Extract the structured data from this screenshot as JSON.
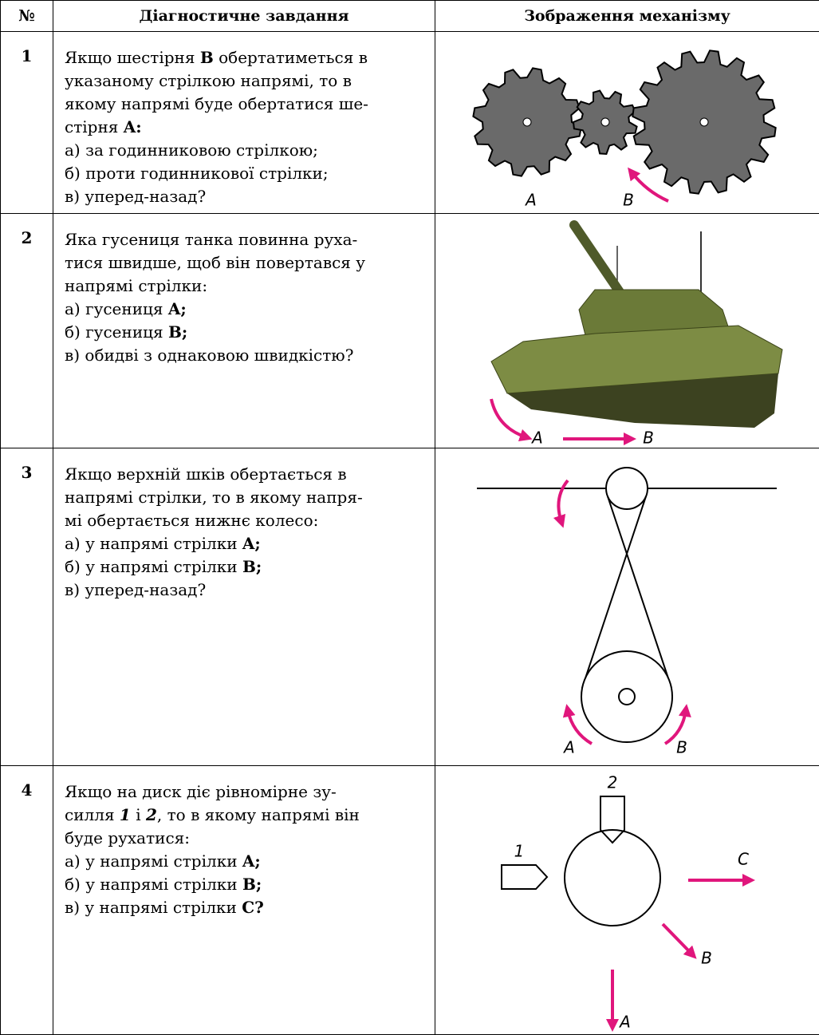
{
  "table": {
    "header": [
      "№",
      "Діагностичне завдання",
      "Зображення механізму"
    ],
    "rows": [
      {
        "number": "1",
        "lines": [
          [
            "Якщо шестірня ",
            {
              "b": "B"
            },
            " обертатиметься в"
          ],
          [
            "указаному стрілкою напрямі, то в"
          ],
          [
            "якому напрямі буде обертатися ше-"
          ],
          [
            "стірня ",
            {
              "b": "A:"
            }
          ],
          [
            "а) за годинниковою стрілкою;"
          ],
          [
            "б) проти годинникової стрілки;"
          ],
          [
            "в) уперед-назад?"
          ]
        ],
        "figure_labels": [
          "A",
          "B"
        ]
      },
      {
        "number": "2",
        "lines": [
          [
            "Яка гусениця танка повинна руха-"
          ],
          [
            "тися швидше, щоб він повертався у"
          ],
          [
            "напрямі стрілки:"
          ],
          [
            "а) гусениця ",
            {
              "b": "A;"
            }
          ],
          [
            "б) гусениця ",
            {
              "b": "B;"
            }
          ],
          [
            "в) обидві з однаковою швидкістю?"
          ]
        ],
        "figure_labels": [
          "A",
          "B"
        ]
      },
      {
        "number": "3",
        "lines": [
          [
            "Якщо верхній шків обертається в"
          ],
          [
            "напрямі стрілки, то в якому напря-"
          ],
          [
            "мі обертається нижнє колесо:"
          ],
          [
            "а) у напрямі стрілки ",
            {
              "b": "A;"
            }
          ],
          [
            "б) у напрямі стрілки ",
            {
              "b": "B;"
            }
          ],
          [
            "в) уперед-назад?"
          ]
        ],
        "figure_labels": [
          "A",
          "B"
        ]
      },
      {
        "number": "4",
        "lines": [
          [
            "Якщо на диск діє рівномірне зу-"
          ],
          [
            "силля ",
            {
              "i": "1"
            },
            " і ",
            {
              "i": "2"
            },
            ", то в якому напрямі він"
          ],
          [
            "буде рухатися:"
          ],
          [
            "а) у напрямі стрілки ",
            {
              "b": "A;"
            }
          ],
          [
            "б) у напрямі стрілки ",
            {
              "b": "B;"
            }
          ],
          [
            "в) у напрямі стрілки ",
            {
              "b": "C?"
            }
          ]
        ],
        "figure_labels": [
          "2",
          "1",
          "C",
          "B",
          "A"
        ]
      }
    ]
  }
}
